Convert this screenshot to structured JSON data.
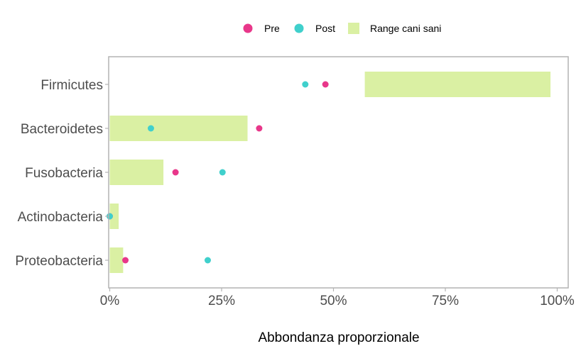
{
  "chart_data": {
    "type": "scatter",
    "xlabel": "Abbondanza proporzionale",
    "ylabel": "",
    "xlim": [
      0,
      1
    ],
    "x_ticks": [
      0,
      0.25,
      0.5,
      0.75,
      1
    ],
    "x_tick_labels": [
      "0%",
      "25%",
      "50%",
      "75%",
      "100%"
    ],
    "categories": [
      "Firmicutes",
      "Bacteroidetes",
      "Fusobacteria",
      "Actinobacteria",
      "Proteobacteria"
    ],
    "grid": false,
    "legend_position": "top",
    "range": {
      "name": "Range cani sani",
      "color": "#daf0a3",
      "values": [
        [
          0.57,
          0.985
        ],
        [
          0.0,
          0.308
        ],
        [
          0.0,
          0.12
        ],
        [
          0.0,
          0.02
        ],
        [
          0.0,
          0.03
        ]
      ]
    },
    "series": [
      {
        "name": "Pre",
        "color": "#e8378a",
        "values": [
          0.482,
          0.334,
          0.147,
          0.0,
          0.035
        ]
      },
      {
        "name": "Post",
        "color": "#40d0cc",
        "values": [
          0.437,
          0.092,
          0.252,
          0.0,
          0.219
        ]
      }
    ]
  }
}
